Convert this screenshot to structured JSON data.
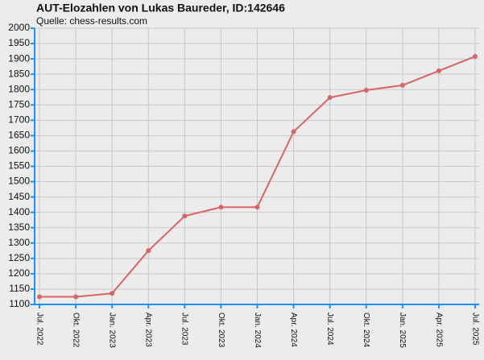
{
  "chart_data": {
    "type": "line",
    "title": "AUT-Elozahlen von Lukas Baureder, ID:142646",
    "subtitle": "Quelle: chess-results.com",
    "categories": [
      "Jul. 2022",
      "Okt. 2022",
      "Jan. 2023",
      "Apr. 2023",
      "Jul. 2023",
      "Okt. 2023",
      "Jan. 2024",
      "Apr. 2024",
      "Jul. 2024",
      "Okt. 2024",
      "Jan. 2025",
      "Apr. 2025",
      "Jul. 2025"
    ],
    "series": [
      {
        "name": "Elo",
        "color": "#d96464",
        "values": [
          1125,
          1125,
          1136,
          1275,
          1388,
          1417,
          1417,
          1663,
          1774,
          1798,
          1814,
          1861,
          1908
        ]
      }
    ],
    "ylim": [
      1100,
      2000
    ],
    "yticks": [
      1100,
      1150,
      1200,
      1250,
      1300,
      1350,
      1400,
      1450,
      1500,
      1550,
      1600,
      1650,
      1700,
      1750,
      1800,
      1850,
      1900,
      1950,
      2000
    ],
    "grid": true
  }
}
